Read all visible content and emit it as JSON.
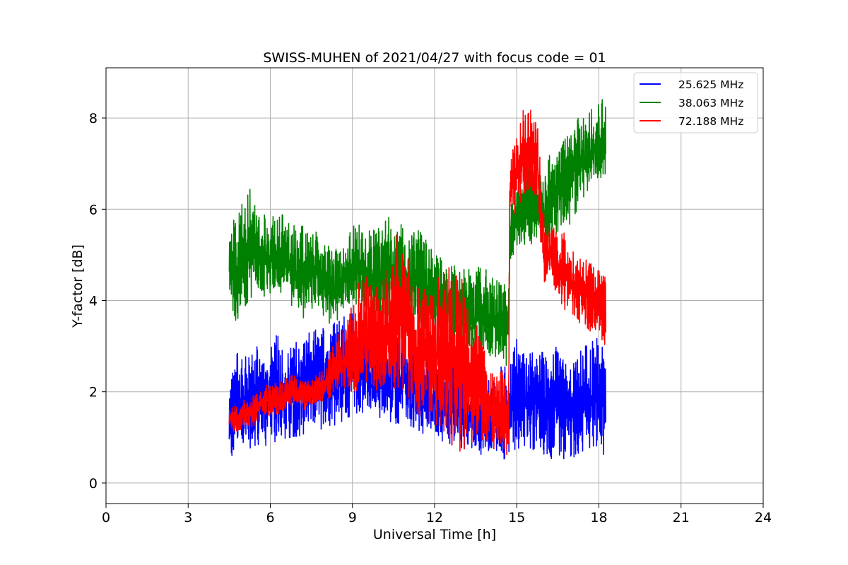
{
  "chart_data": {
    "type": "line",
    "title": "SWISS-MUHEN of 2021/04/27 with focus code = 01",
    "xlabel": "Universal Time [h]",
    "ylabel": "Y-factor [dB]",
    "xlim": [
      0,
      24
    ],
    "ylim": [
      -0.45,
      9.1
    ],
    "xticks": [
      0,
      3,
      6,
      9,
      12,
      15,
      18,
      21,
      24
    ],
    "yticks": [
      0,
      2,
      4,
      6,
      8
    ],
    "grid": true,
    "legend_position": "top-right",
    "series": [
      {
        "name": "25.625 MHz",
        "color": "#0000ff",
        "x": [
          4.5,
          4.75,
          5.0,
          5.25,
          5.5,
          5.75,
          6.0,
          6.25,
          6.5,
          6.75,
          7.0,
          7.25,
          7.5,
          7.75,
          8.0,
          8.25,
          8.5,
          8.75,
          9.0,
          9.25,
          9.5,
          9.75,
          10.0,
          10.25,
          10.5,
          10.75,
          11.0,
          11.25,
          11.5,
          11.75,
          12.0,
          12.25,
          12.5,
          12.75,
          13.0,
          13.25,
          13.5,
          13.75,
          14.0,
          14.25,
          14.5,
          14.75,
          15.0,
          15.25,
          15.5,
          15.75,
          16.0,
          16.25,
          16.5,
          16.75,
          17.0,
          17.25,
          17.5,
          17.75,
          18.0,
          18.25
        ],
        "low": [
          0.25,
          0.6,
          0.7,
          0.75,
          0.8,
          0.8,
          0.85,
          0.9,
          0.95,
          1.0,
          1.0,
          1.05,
          1.1,
          1.15,
          1.2,
          1.25,
          1.3,
          1.4,
          1.5,
          1.55,
          1.5,
          1.45,
          1.4,
          1.35,
          1.3,
          1.3,
          1.25,
          1.2,
          1.1,
          1.0,
          0.95,
          0.9,
          0.85,
          0.8,
          0.75,
          0.7,
          0.65,
          0.6,
          0.55,
          0.5,
          0.45,
          0.7,
          0.75,
          0.8,
          0.75,
          0.7,
          0.5,
          0.3,
          0.45,
          0.5,
          0.4,
          0.45,
          0.6,
          0.65,
          0.7,
          0.55
        ],
        "high": [
          2.3,
          2.9,
          2.8,
          2.9,
          3.2,
          2.9,
          3.0,
          3.3,
          2.9,
          3.1,
          3.1,
          3.3,
          3.3,
          3.4,
          3.4,
          3.5,
          3.6,
          3.7,
          3.9,
          3.8,
          3.6,
          3.4,
          3.3,
          3.3,
          3.2,
          3.3,
          3.1,
          3.0,
          2.9,
          2.8,
          2.7,
          2.6,
          2.6,
          2.8,
          2.5,
          2.4,
          2.3,
          2.4,
          2.5,
          2.5,
          2.6,
          2.9,
          3.2,
          3.0,
          2.9,
          2.8,
          2.9,
          3.1,
          3.0,
          2.8,
          2.7,
          2.9,
          3.0,
          3.1,
          3.2,
          3.0
        ]
      },
      {
        "name": "38.063 MHz",
        "color": "#008000",
        "x": [
          4.5,
          4.75,
          5.0,
          5.25,
          5.5,
          5.75,
          6.0,
          6.25,
          6.5,
          6.75,
          7.0,
          7.25,
          7.5,
          7.75,
          8.0,
          8.25,
          8.5,
          8.75,
          9.0,
          9.25,
          9.5,
          9.75,
          10.0,
          10.25,
          10.5,
          10.75,
          11.0,
          11.25,
          11.5,
          11.75,
          12.0,
          12.25,
          12.5,
          12.75,
          13.0,
          13.25,
          13.5,
          13.75,
          14.0,
          14.25,
          14.5,
          14.7,
          14.75,
          15.0,
          15.25,
          15.5,
          15.75,
          16.0,
          16.25,
          16.5,
          16.75,
          17.0,
          17.25,
          17.5,
          17.75,
          18.0,
          18.25
        ],
        "low": [
          4.1,
          3.5,
          3.8,
          4.0,
          4.2,
          4.1,
          4.0,
          4.1,
          4.2,
          3.9,
          3.7,
          3.6,
          3.8,
          3.9,
          3.6,
          3.4,
          3.6,
          3.8,
          3.9,
          3.9,
          3.7,
          3.6,
          3.5,
          3.6,
          3.5,
          3.4,
          3.3,
          3.4,
          3.5,
          3.3,
          3.2,
          3.1,
          3.0,
          2.9,
          2.8,
          2.7,
          2.6,
          2.8,
          2.7,
          2.6,
          2.5,
          2.4,
          4.8,
          5.2,
          5.1,
          5.2,
          5.4,
          5.0,
          5.3,
          5.5,
          5.6,
          5.7,
          6.0,
          6.3,
          6.6,
          6.7,
          6.6
        ],
        "high": [
          5.7,
          5.8,
          6.4,
          6.5,
          6.0,
          5.9,
          5.8,
          6.0,
          5.9,
          5.8,
          5.6,
          5.7,
          5.5,
          5.5,
          5.3,
          5.1,
          5.2,
          5.3,
          5.6,
          5.8,
          5.7,
          5.6,
          5.7,
          5.8,
          5.9,
          5.7,
          5.6,
          5.6,
          5.5,
          5.3,
          5.1,
          5.0,
          4.9,
          4.9,
          4.8,
          4.7,
          4.7,
          4.8,
          4.6,
          4.5,
          4.4,
          4.3,
          6.1,
          6.6,
          6.8,
          7.2,
          7.0,
          6.8,
          7.3,
          7.5,
          7.6,
          7.9,
          8.1,
          8.1,
          8.2,
          8.4,
          8.5
        ]
      },
      {
        "name": "72.188 MHz",
        "color": "#ff0000",
        "x": [
          4.5,
          4.75,
          5.0,
          5.25,
          5.5,
          5.75,
          6.0,
          6.25,
          6.5,
          6.75,
          7.0,
          7.25,
          7.5,
          7.75,
          8.0,
          8.25,
          8.5,
          8.75,
          9.0,
          9.25,
          9.5,
          9.75,
          10.0,
          10.25,
          10.5,
          10.75,
          11.0,
          11.25,
          11.5,
          11.75,
          12.0,
          12.25,
          12.5,
          12.75,
          13.0,
          13.25,
          13.5,
          13.75,
          14.0,
          14.25,
          14.5,
          14.7,
          14.75,
          15.0,
          15.25,
          15.5,
          15.75,
          16.0,
          16.25,
          16.5,
          16.75,
          17.0,
          17.25,
          17.5,
          17.75,
          18.0,
          18.25
        ],
        "low": [
          1.1,
          1.1,
          1.2,
          1.2,
          1.3,
          1.4,
          1.5,
          1.5,
          1.6,
          1.7,
          1.7,
          1.6,
          1.7,
          1.7,
          1.8,
          1.9,
          1.9,
          2.0,
          2.0,
          2.0,
          2.1,
          2.0,
          2.0,
          2.0,
          2.0,
          2.1,
          1.9,
          1.6,
          1.4,
          1.3,
          1.3,
          1.2,
          1.0,
          0.6,
          0.7,
          0.8,
          0.9,
          0.8,
          0.8,
          0.7,
          0.6,
          0.6,
          5.6,
          6.0,
          6.3,
          6.5,
          6.2,
          4.3,
          4.4,
          3.9,
          3.8,
          3.6,
          3.5,
          3.4,
          3.3,
          3.2,
          3.0
        ],
        "high": [
          1.7,
          1.7,
          1.8,
          1.9,
          2.0,
          2.1,
          2.2,
          2.2,
          2.3,
          2.4,
          2.3,
          2.2,
          2.3,
          2.4,
          2.5,
          3.0,
          3.3,
          3.5,
          4.0,
          4.5,
          4.6,
          4.3,
          4.3,
          4.6,
          5.5,
          5.8,
          5.1,
          4.2,
          4.3,
          4.2,
          4.4,
          4.7,
          4.8,
          4.9,
          4.5,
          4.0,
          3.6,
          3.1,
          2.8,
          2.6,
          2.5,
          2.4,
          7.0,
          7.7,
          8.2,
          8.2,
          8.0,
          6.0,
          5.8,
          5.5,
          5.5,
          5.2,
          5.0,
          4.9,
          4.8,
          4.7,
          4.6
        ]
      }
    ]
  }
}
